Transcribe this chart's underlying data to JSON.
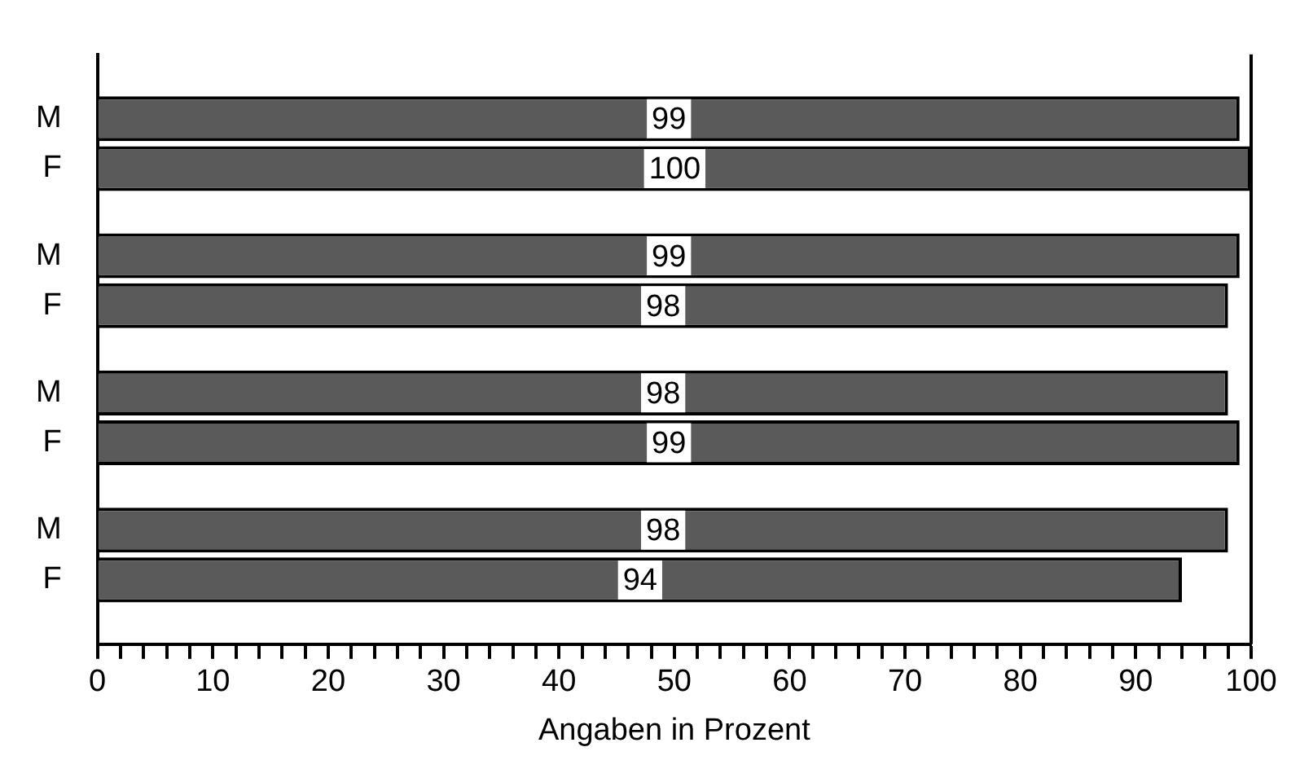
{
  "chart_data": {
    "type": "bar",
    "orientation": "horizontal",
    "categories": [
      "M",
      "F",
      "M",
      "F",
      "M",
      "F",
      "M",
      "F"
    ],
    "values": [
      99,
      100,
      99,
      98,
      98,
      99,
      98,
      94
    ],
    "color": "#5a5a5a",
    "data_labels": true,
    "xlabel": "Angaben in Prozent",
    "xlim": [
      0,
      100
    ],
    "xticks": [
      0,
      {
        "value": 2,
        "label": null
      },
      {
        "value": 4,
        "label": null
      },
      {
        "value": 6,
        "label": null
      },
      {
        "value": 8,
        "label": null
      },
      10,
      {
        "value": 12,
        "label": null
      },
      {
        "value": 14,
        "label": null
      },
      {
        "value": 16,
        "label": null
      },
      {
        "value": 18,
        "label": null
      },
      20,
      {
        "value": 22,
        "label": null
      },
      {
        "value": 24,
        "label": null
      },
      {
        "value": 26,
        "label": null
      },
      {
        "value": 28,
        "label": null
      },
      30,
      {
        "value": 32,
        "label": null
      },
      {
        "value": 34,
        "label": null
      },
      {
        "value": 36,
        "label": null
      },
      {
        "value": 38,
        "label": null
      },
      40,
      {
        "value": 42,
        "label": null
      },
      {
        "value": 44,
        "label": null
      },
      {
        "value": 46,
        "label": null
      },
      {
        "value": 48,
        "label": null
      },
      50,
      {
        "value": 52,
        "label": null
      },
      {
        "value": 54,
        "label": null
      },
      {
        "value": 56,
        "label": null
      },
      {
        "value": 58,
        "label": null
      },
      60,
      {
        "value": 62,
        "label": null
      },
      {
        "value": 64,
        "label": null
      },
      {
        "value": 66,
        "label": null
      },
      {
        "value": 68,
        "label": null
      },
      70,
      {
        "value": 72,
        "label": null
      },
      {
        "value": 74,
        "label": null
      },
      {
        "value": 76,
        "label": null
      },
      {
        "value": 78,
        "label": null
      },
      80,
      {
        "value": 82,
        "label": null
      },
      {
        "value": 84,
        "label": null
      },
      {
        "value": 86,
        "label": null
      },
      {
        "value": 88,
        "label": null
      },
      90,
      {
        "value": 92,
        "label": null
      },
      {
        "value": 94,
        "label": null
      },
      {
        "value": 96,
        "label": null
      },
      {
        "value": 98,
        "label": null
      },
      100
    ],
    "grid": false,
    "legend": false
  }
}
